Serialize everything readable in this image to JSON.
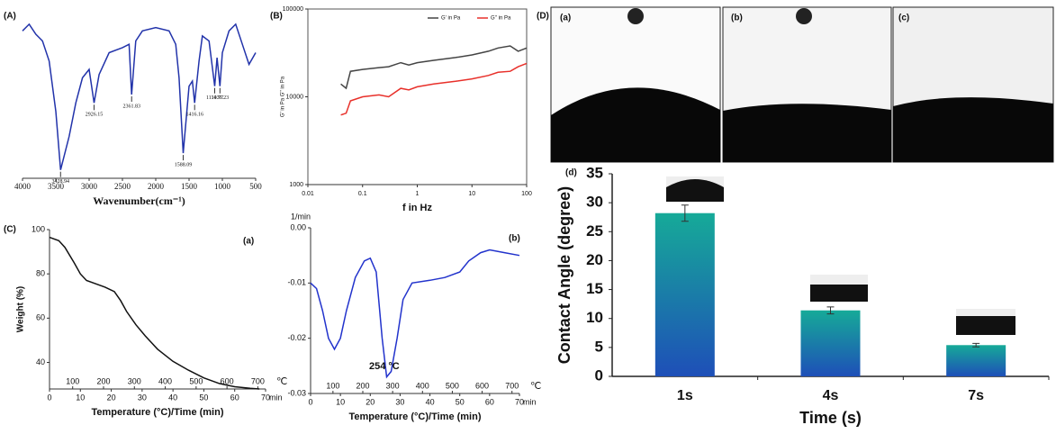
{
  "chart_data": [
    {
      "type": "line",
      "panel": "(A)",
      "xlabel": "Wavenumber(cm⁻¹)",
      "xlim": [
        4000,
        500
      ],
      "xticks": [
        4000,
        3500,
        3000,
        2500,
        2000,
        1500,
        1000,
        500
      ],
      "ylim": [
        0,
        100
      ],
      "x": [
        4000,
        3900,
        3800,
        3700,
        3600,
        3500,
        3428.94,
        3300,
        3200,
        3100,
        3000,
        2926.15,
        2850,
        2700,
        2500,
        2400,
        2361.83,
        2300,
        2200,
        2000,
        1800,
        1700,
        1650,
        1588.09,
        1500,
        1450,
        1416.16,
        1350,
        1300,
        1200,
        1114.77,
        1080,
        1036.23,
        1000,
        900,
        800,
        700,
        600,
        500
      ],
      "series": [
        {
          "color": "#2233aa",
          "values": [
            88,
            92,
            86,
            82,
            70,
            40,
            5,
            25,
            45,
            60,
            65,
            45,
            62,
            75,
            78,
            80,
            50,
            82,
            88,
            90,
            88,
            80,
            60,
            15,
            55,
            58,
            45,
            70,
            85,
            82,
            55,
            72,
            55,
            75,
            88,
            92,
            80,
            68,
            75
          ]
        }
      ],
      "peak_labels": [
        3428.94,
        2926.15,
        2361.83,
        1588.09,
        1416.16,
        1114.77,
        1036.23
      ]
    },
    {
      "type": "line",
      "panel": "(B)",
      "xlabel": "f in Hz",
      "ylabel": "G' in Pa G'' in Pa",
      "xlog": true,
      "ylog": true,
      "xlim": [
        0.01,
        100
      ],
      "xticks": [
        0.01,
        0.1,
        1,
        10,
        100
      ],
      "ylim": [
        1000,
        100000
      ],
      "yticks": [
        1000,
        10000,
        100000
      ],
      "legend": "top-right",
      "x": [
        0.04,
        0.05,
        0.06,
        0.1,
        0.2,
        0.3,
        0.5,
        0.7,
        1,
        2,
        5,
        10,
        20,
        30,
        50,
        70,
        100
      ],
      "series": [
        {
          "name": "G' in Pa",
          "color": "#444444",
          "values": [
            14000,
            12500,
            19500,
            20500,
            21500,
            22000,
            24500,
            23000,
            24500,
            26000,
            28000,
            30000,
            33000,
            36000,
            38000,
            33000,
            36000
          ]
        },
        {
          "name": "G'' in Pa",
          "color": "#e8302a",
          "values": [
            6200,
            6500,
            9000,
            10000,
            10500,
            10000,
            12500,
            12000,
            13000,
            14000,
            15000,
            16000,
            17500,
            19000,
            19500,
            22000,
            24000
          ]
        }
      ]
    },
    {
      "type": "line",
      "panel": "(C)",
      "label": "(a)",
      "xlabel": "Temperature (°C)/Time (min)",
      "ylabel": "Weight (%)",
      "xlim": [
        0,
        70
      ],
      "xticks": [
        0,
        10,
        20,
        30,
        40,
        50,
        60,
        70
      ],
      "xunit": "min",
      "x2lim": [
        25,
        725
      ],
      "x2ticks": [
        100,
        200,
        300,
        400,
        500,
        600,
        700
      ],
      "x2unit": "℃",
      "ylim": [
        28,
        100
      ],
      "yticks": [
        40,
        60,
        80,
        100
      ],
      "x": [
        0,
        3,
        5,
        8,
        10,
        12,
        15,
        18,
        21,
        23,
        25,
        28,
        31,
        35,
        40,
        45,
        50,
        55,
        60,
        65,
        68
      ],
      "series": [
        {
          "color": "#111111",
          "values": [
            96.5,
            95,
            92,
            85,
            80,
            77,
            75.5,
            74,
            72,
            68,
            63,
            57,
            52,
            46,
            40.5,
            36.5,
            33,
            30.5,
            29,
            28.3,
            28
          ]
        }
      ]
    },
    {
      "type": "line",
      "label": "(b)",
      "ylabel": "1/min",
      "xlabel": "Temperature (°C)/Time (min)",
      "xlim": [
        0,
        70
      ],
      "xticks": [
        0,
        10,
        20,
        30,
        40,
        50,
        60,
        70
      ],
      "xunit": "min",
      "x2lim": [
        25,
        725
      ],
      "x2ticks": [
        100,
        200,
        300,
        400,
        500,
        600,
        700
      ],
      "x2unit": "℃",
      "ylim": [
        -0.03,
        0
      ],
      "yticks": [
        {
          "value": 0,
          "label": "0.00"
        },
        -0.01,
        -0.02,
        -0.03
      ],
      "annotation": "254 °C",
      "x": [
        0,
        2,
        4,
        6,
        8,
        10,
        12,
        15,
        18,
        20,
        22,
        24,
        25.5,
        27,
        29,
        31,
        34,
        40,
        45,
        50,
        53,
        57,
        60,
        65,
        70
      ],
      "series": [
        {
          "color": "#2233cc",
          "values": [
            -0.01,
            -0.011,
            -0.015,
            -0.02,
            -0.022,
            -0.02,
            -0.015,
            -0.009,
            -0.006,
            -0.0055,
            -0.008,
            -0.02,
            -0.027,
            -0.026,
            -0.02,
            -0.013,
            -0.01,
            -0.0095,
            -0.009,
            -0.008,
            -0.006,
            -0.0045,
            -0.004,
            -0.0045,
            -0.005
          ]
        }
      ]
    },
    {
      "type": "bar",
      "panel": "(D)",
      "photo_labels": [
        "(a)",
        "(b)",
        "(c)"
      ],
      "label": "(d)",
      "xlabel": "Time (s)",
      "ylabel": "Contact Angle (degree)",
      "categories": [
        "1s",
        "4s",
        "7s"
      ],
      "values": [
        28.2,
        11.4,
        5.4
      ],
      "errors": [
        1.4,
        0.6,
        0.3
      ],
      "colors": [
        "#16aa98",
        "#1e4fb8"
      ],
      "ylim": [
        0,
        35
      ],
      "yticks": [
        0,
        5,
        10,
        15,
        20,
        25,
        30,
        35
      ]
    }
  ]
}
